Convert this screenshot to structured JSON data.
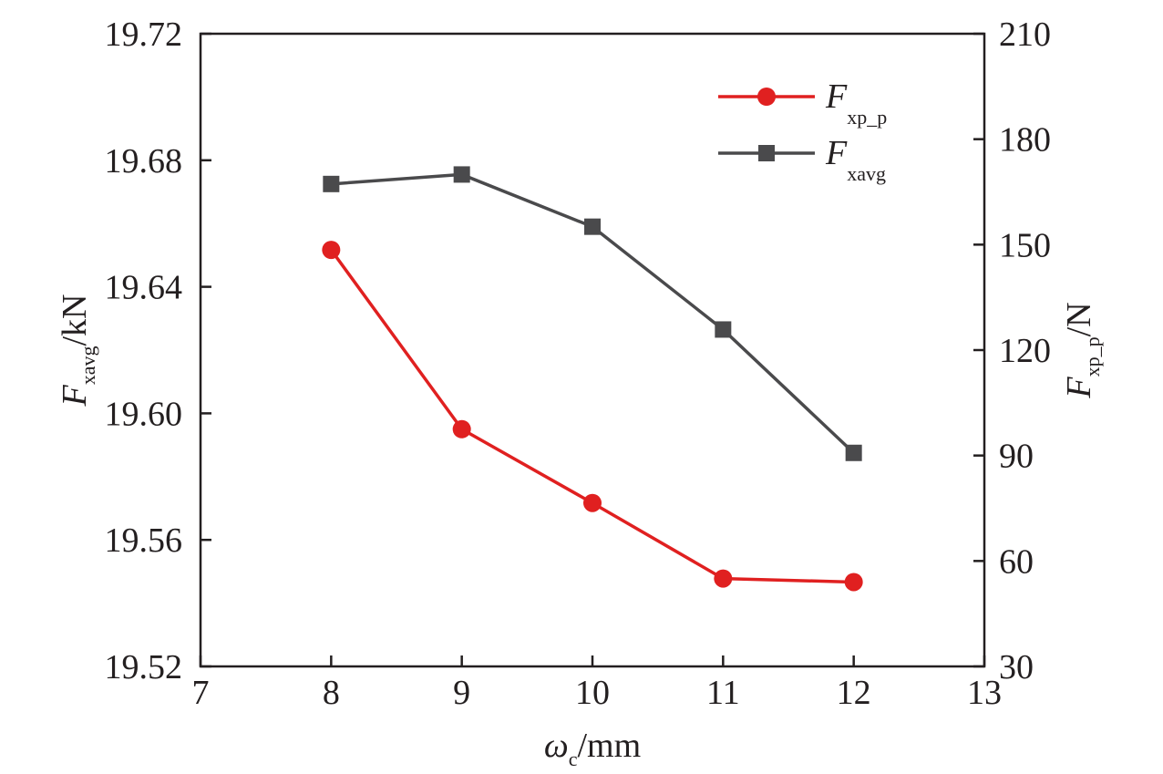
{
  "chart_data": {
    "type": "line",
    "xlabel": {
      "main": "ω",
      "sub": "c",
      "unit": "/mm"
    },
    "ylabel_left": {
      "main": "F",
      "sub": "xavg",
      "unit": "/kN"
    },
    "ylabel_right": {
      "main": "F",
      "sub": "xp_p",
      "unit": "/N"
    },
    "xlim": [
      7,
      13
    ],
    "x_ticks": [
      "7",
      "8",
      "9",
      "10",
      "11",
      "12",
      "13"
    ],
    "ylim_left": [
      19.52,
      19.72
    ],
    "y_ticks_left": [
      "19.52",
      "19.56",
      "19.60",
      "19.64",
      "19.68",
      "19.72"
    ],
    "ylim_right": [
      30,
      210
    ],
    "y_ticks_right": [
      "30",
      "60",
      "90",
      "120",
      "150",
      "180",
      "210"
    ],
    "grid": false,
    "legend_position": "top-right",
    "series": [
      {
        "name": "F_xp_p",
        "legend_main": "F",
        "legend_sub": "xp_p",
        "axis": "right",
        "marker": "circle",
        "color": "#e02020",
        "x": [
          8,
          9,
          10,
          11,
          12
        ],
        "y": [
          148.5,
          97.5,
          76.5,
          55,
          54
        ]
      },
      {
        "name": "F_xavg",
        "legend_main": "F",
        "legend_sub": "xavg",
        "axis": "left",
        "marker": "square",
        "color": "#4a4a4c",
        "x": [
          8,
          9,
          10,
          11,
          12
        ],
        "y": [
          19.6725,
          19.6755,
          19.659,
          19.6265,
          19.5875
        ]
      }
    ]
  }
}
